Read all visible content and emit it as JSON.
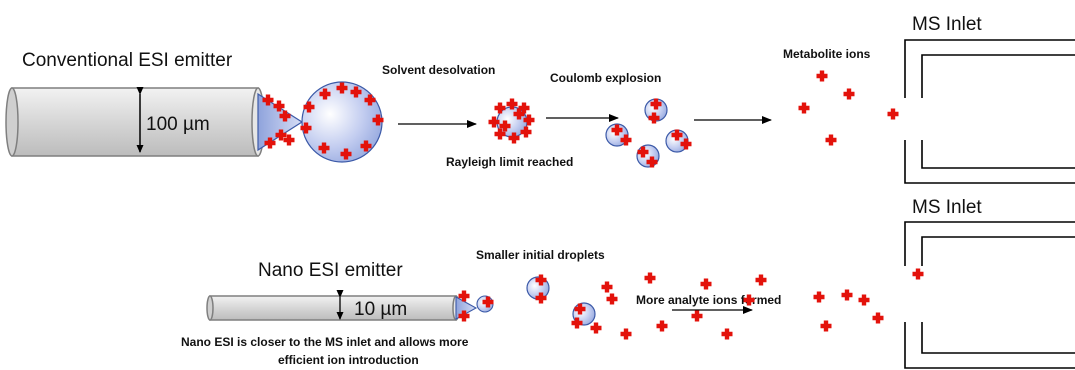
{
  "labels": {
    "conventional_emitter": "Conventional ESI emitter",
    "conventional_diameter": "100 µm",
    "solvent_desolvation": "Solvent desolvation",
    "rayleigh_limit": "Rayleigh limit reached",
    "coulomb_explosion": "Coulomb  explosion",
    "metabolite_ions": "Metabolite ions",
    "ms_inlet_top": "MS Inlet",
    "ms_inlet_bottom": "MS Inlet",
    "nano_emitter": "Nano ESI emitter",
    "nano_diameter": "10 µm",
    "smaller_droplets": "Smaller initial droplets",
    "more_analyte_ions": "More analyte ions formed",
    "nano_note_line1": "Nano ESI is closer to the MS inlet and allows more",
    "nano_note_line2": "efficient ion introduction"
  },
  "colors": {
    "ion": "#e3120b",
    "droplet_fill": "#b4c2ec",
    "droplet_stroke": "#3c5aa8",
    "emitter_fill": "#d9d9d9",
    "emitter_stroke": "#7f7f7f",
    "line": "#000000"
  }
}
